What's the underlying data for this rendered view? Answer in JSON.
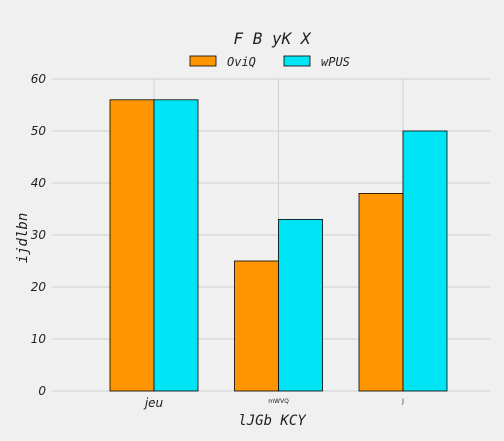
{
  "chart_data": {
    "type": "bar",
    "title": "F B yK X",
    "xlabel": "lJGb KCY",
    "ylabel": "ijdlbn",
    "categories": [
      "jeu",
      "mWVQ",
      "J"
    ],
    "category_label_sizes": [
      "normal",
      "tiny",
      "tiny"
    ],
    "series": [
      {
        "name": "OviQ",
        "values": [
          56,
          25,
          38
        ],
        "color": "#ff9500"
      },
      {
        "name": "wPUS",
        "values": [
          56,
          33,
          50
        ],
        "color": "#00e5f5"
      }
    ],
    "ylim": [
      0,
      60
    ],
    "yticks": [
      0,
      10,
      20,
      30,
      40,
      50,
      60
    ],
    "grid": true,
    "legend_position": "top-center"
  }
}
